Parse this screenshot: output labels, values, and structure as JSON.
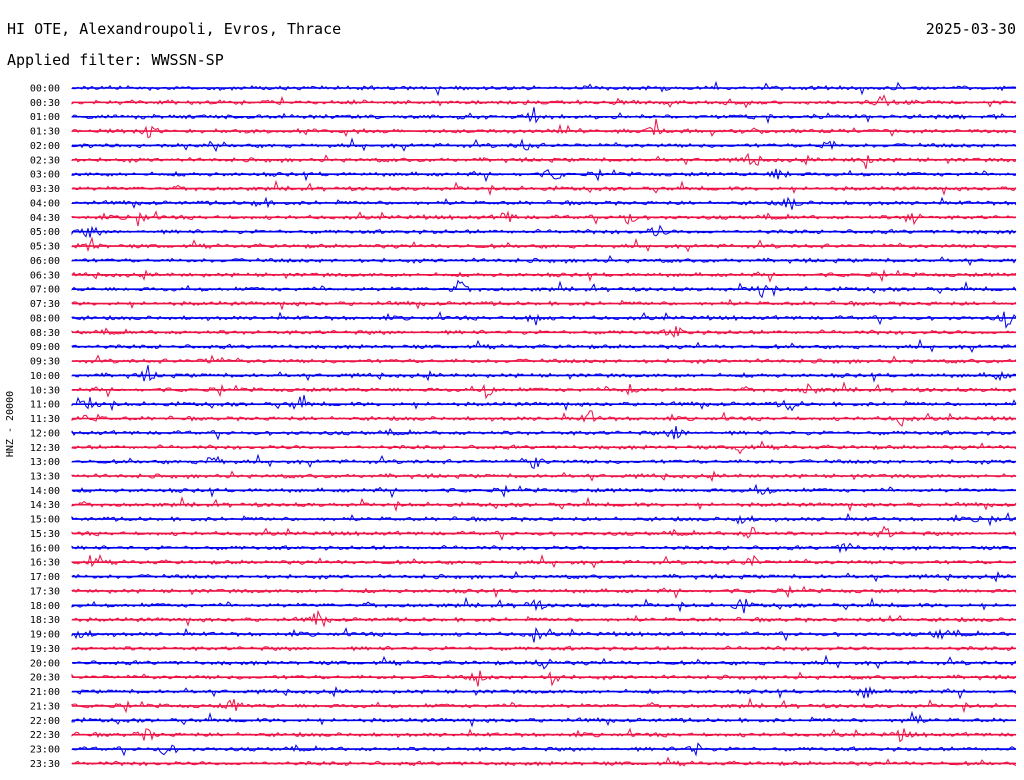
{
  "header": {
    "title": "HI OTE, Alexandroupoli, Evros, Thrace",
    "date": "2025-03-30",
    "filter": "Applied filter: WWSSN-SP"
  },
  "chart_data": {
    "type": "line",
    "ylabel": "HNZ - 20000",
    "colors": [
      "#0000ee",
      "#ee1144"
    ],
    "rows": [
      {
        "label": "00:00",
        "events": []
      },
      {
        "label": "00:30",
        "events": [
          0.86
        ]
      },
      {
        "label": "01:00",
        "events": [
          0.49
        ]
      },
      {
        "label": "01:30",
        "events": [
          0.08,
          0.62
        ]
      },
      {
        "label": "02:00",
        "events": [
          0.48,
          0.8
        ]
      },
      {
        "label": "02:30",
        "events": [
          0.72,
          0.84
        ]
      },
      {
        "label": "03:00",
        "events": [
          0.51,
          0.75
        ]
      },
      {
        "label": "03:30",
        "events": []
      },
      {
        "label": "04:00",
        "events": [
          0.2,
          0.76
        ]
      },
      {
        "label": "04:30",
        "events": [
          0.07,
          0.46,
          0.59,
          0.89
        ]
      },
      {
        "label": "05:00",
        "events": [
          0.02,
          0.62
        ]
      },
      {
        "label": "05:30",
        "events": [
          0.02
        ]
      },
      {
        "label": "06:00",
        "events": []
      },
      {
        "label": "06:30",
        "events": []
      },
      {
        "label": "07:00",
        "events": [
          0.41,
          0.73
        ]
      },
      {
        "label": "07:30",
        "events": []
      },
      {
        "label": "08:00",
        "events": [
          0.49,
          0.99
        ]
      },
      {
        "label": "08:30",
        "events": [
          0.64
        ]
      },
      {
        "label": "09:00",
        "events": []
      },
      {
        "label": "09:30",
        "events": [
          0.15
        ]
      },
      {
        "label": "10:00",
        "events": [
          0.08,
          0.98
        ]
      },
      {
        "label": "10:30",
        "events": [
          0.44,
          0.59,
          0.78
        ]
      },
      {
        "label": "11:00",
        "events": [
          0.02,
          0.24,
          0.76
        ]
      },
      {
        "label": "11:30",
        "events": [
          0.02,
          0.55,
          0.88
        ]
      },
      {
        "label": "12:00",
        "events": [
          0.64
        ]
      },
      {
        "label": "12:30",
        "events": [
          0.71
        ]
      },
      {
        "label": "13:00",
        "events": [
          0.15,
          0.49
        ]
      },
      {
        "label": "13:30",
        "events": []
      },
      {
        "label": "14:00",
        "events": [
          0.73
        ]
      },
      {
        "label": "14:30",
        "events": []
      },
      {
        "label": "15:00",
        "events": [
          0.71,
          0.97
        ]
      },
      {
        "label": "15:30",
        "events": [
          0.72,
          0.86
        ]
      },
      {
        "label": "16:00",
        "events": [
          0.82
        ]
      },
      {
        "label": "16:30",
        "events": [
          0.02,
          0.72
        ]
      },
      {
        "label": "17:00",
        "events": []
      },
      {
        "label": "17:30",
        "events": []
      },
      {
        "label": "18:00",
        "events": [
          0.49,
          0.71
        ]
      },
      {
        "label": "18:30",
        "events": [
          0.26,
          0.87
        ]
      },
      {
        "label": "19:00",
        "events": [
          0.01,
          0.49,
          0.92
        ]
      },
      {
        "label": "19:30",
        "events": []
      },
      {
        "label": "20:00",
        "events": [
          0.5
        ]
      },
      {
        "label": "20:30",
        "events": [
          0.43,
          0.51
        ]
      },
      {
        "label": "21:00",
        "events": [
          0.84
        ]
      },
      {
        "label": "21:30",
        "events": [
          0.17
        ]
      },
      {
        "label": "22:00",
        "events": [
          0.89
        ]
      },
      {
        "label": "22:30",
        "events": [
          0.08,
          0.88
        ]
      },
      {
        "label": "23:00",
        "events": [
          0.1,
          0.66
        ]
      },
      {
        "label": "23:30",
        "events": []
      }
    ]
  }
}
